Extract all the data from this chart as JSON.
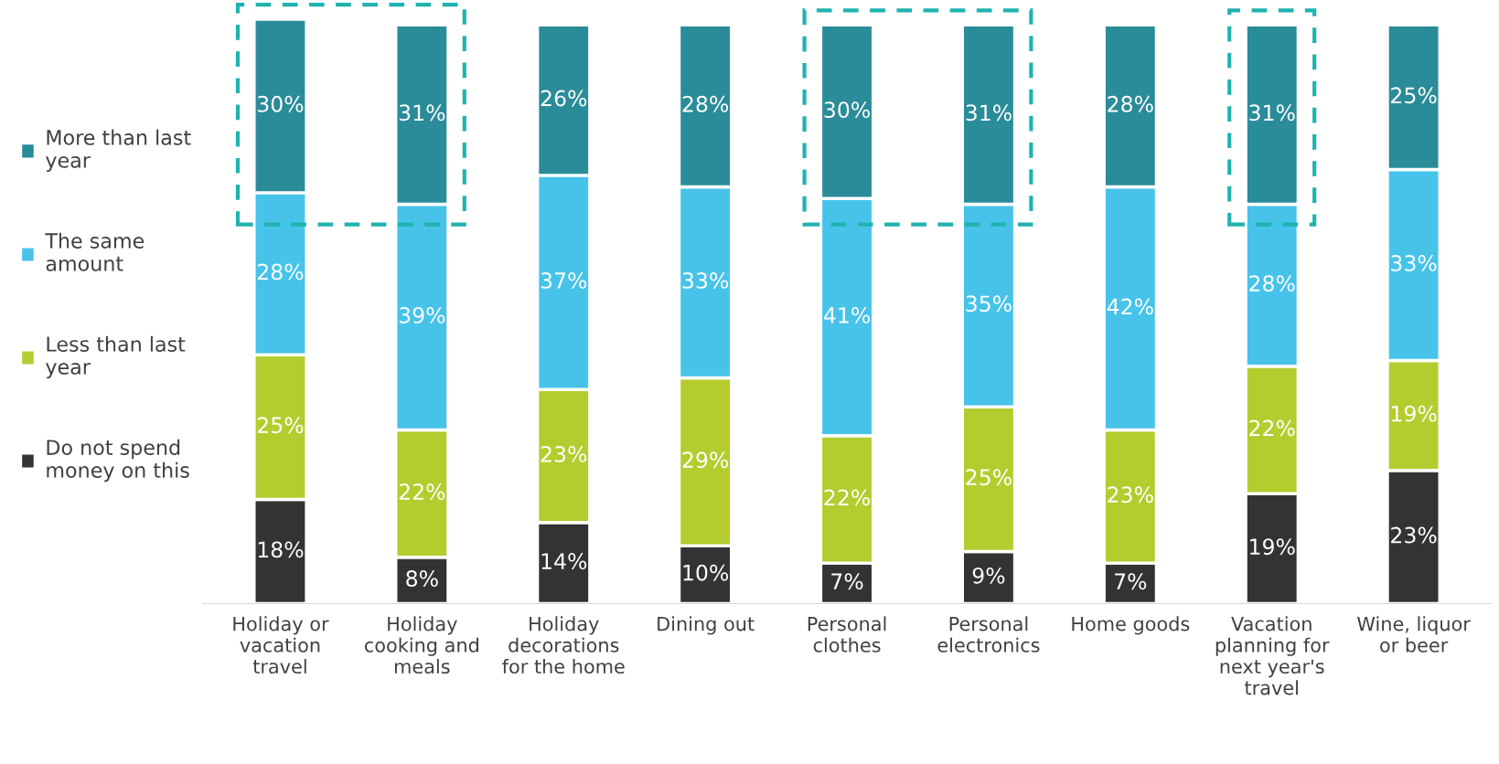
{
  "chart_data": {
    "type": "bar",
    "stacked": true,
    "legend": "left",
    "grid": false,
    "categories": [
      "Holiday or vacation travel",
      "Holiday cooking and meals",
      "Holiday decorations for the home",
      "Dining out",
      "Personal clothes",
      "Personal electronics",
      "Home goods",
      "Vacation planning for next year's travel",
      "Wine, liquor or beer"
    ],
    "series": [
      {
        "name": "Do not spend money on this",
        "color": "#333333",
        "values": [
          18,
          8,
          14,
          10,
          7,
          9,
          7,
          19,
          23
        ],
        "value_labels": [
          "18%",
          "8%",
          "14%",
          "10%",
          "7%",
          "9%",
          "7%",
          "19%",
          "23%"
        ]
      },
      {
        "name": "Less than last year",
        "color": "#b5cc2e",
        "values": [
          25,
          22,
          23,
          29,
          22,
          25,
          23,
          22,
          19
        ],
        "value_labels": [
          "25%",
          "22%",
          "23%",
          "29%",
          "22%",
          "25%",
          "23%",
          "22%",
          "19%"
        ]
      },
      {
        "name": "The same amount",
        "color": "#47c3ea",
        "values": [
          28,
          39,
          37,
          33,
          41,
          35,
          42,
          28,
          33
        ],
        "value_labels": [
          "28%",
          "39%",
          "37%",
          "33%",
          "41%",
          "35%",
          "42%",
          "28%",
          "33%"
        ]
      },
      {
        "name": "More than last year",
        "color": "#2a8c98",
        "values": [
          30,
          31,
          26,
          28,
          30,
          31,
          28,
          31,
          25
        ],
        "value_labels": [
          "30%",
          "31%",
          "26%",
          "28%",
          "30%",
          "31%",
          "28%",
          "31%",
          "25%"
        ]
      }
    ]
  }
}
